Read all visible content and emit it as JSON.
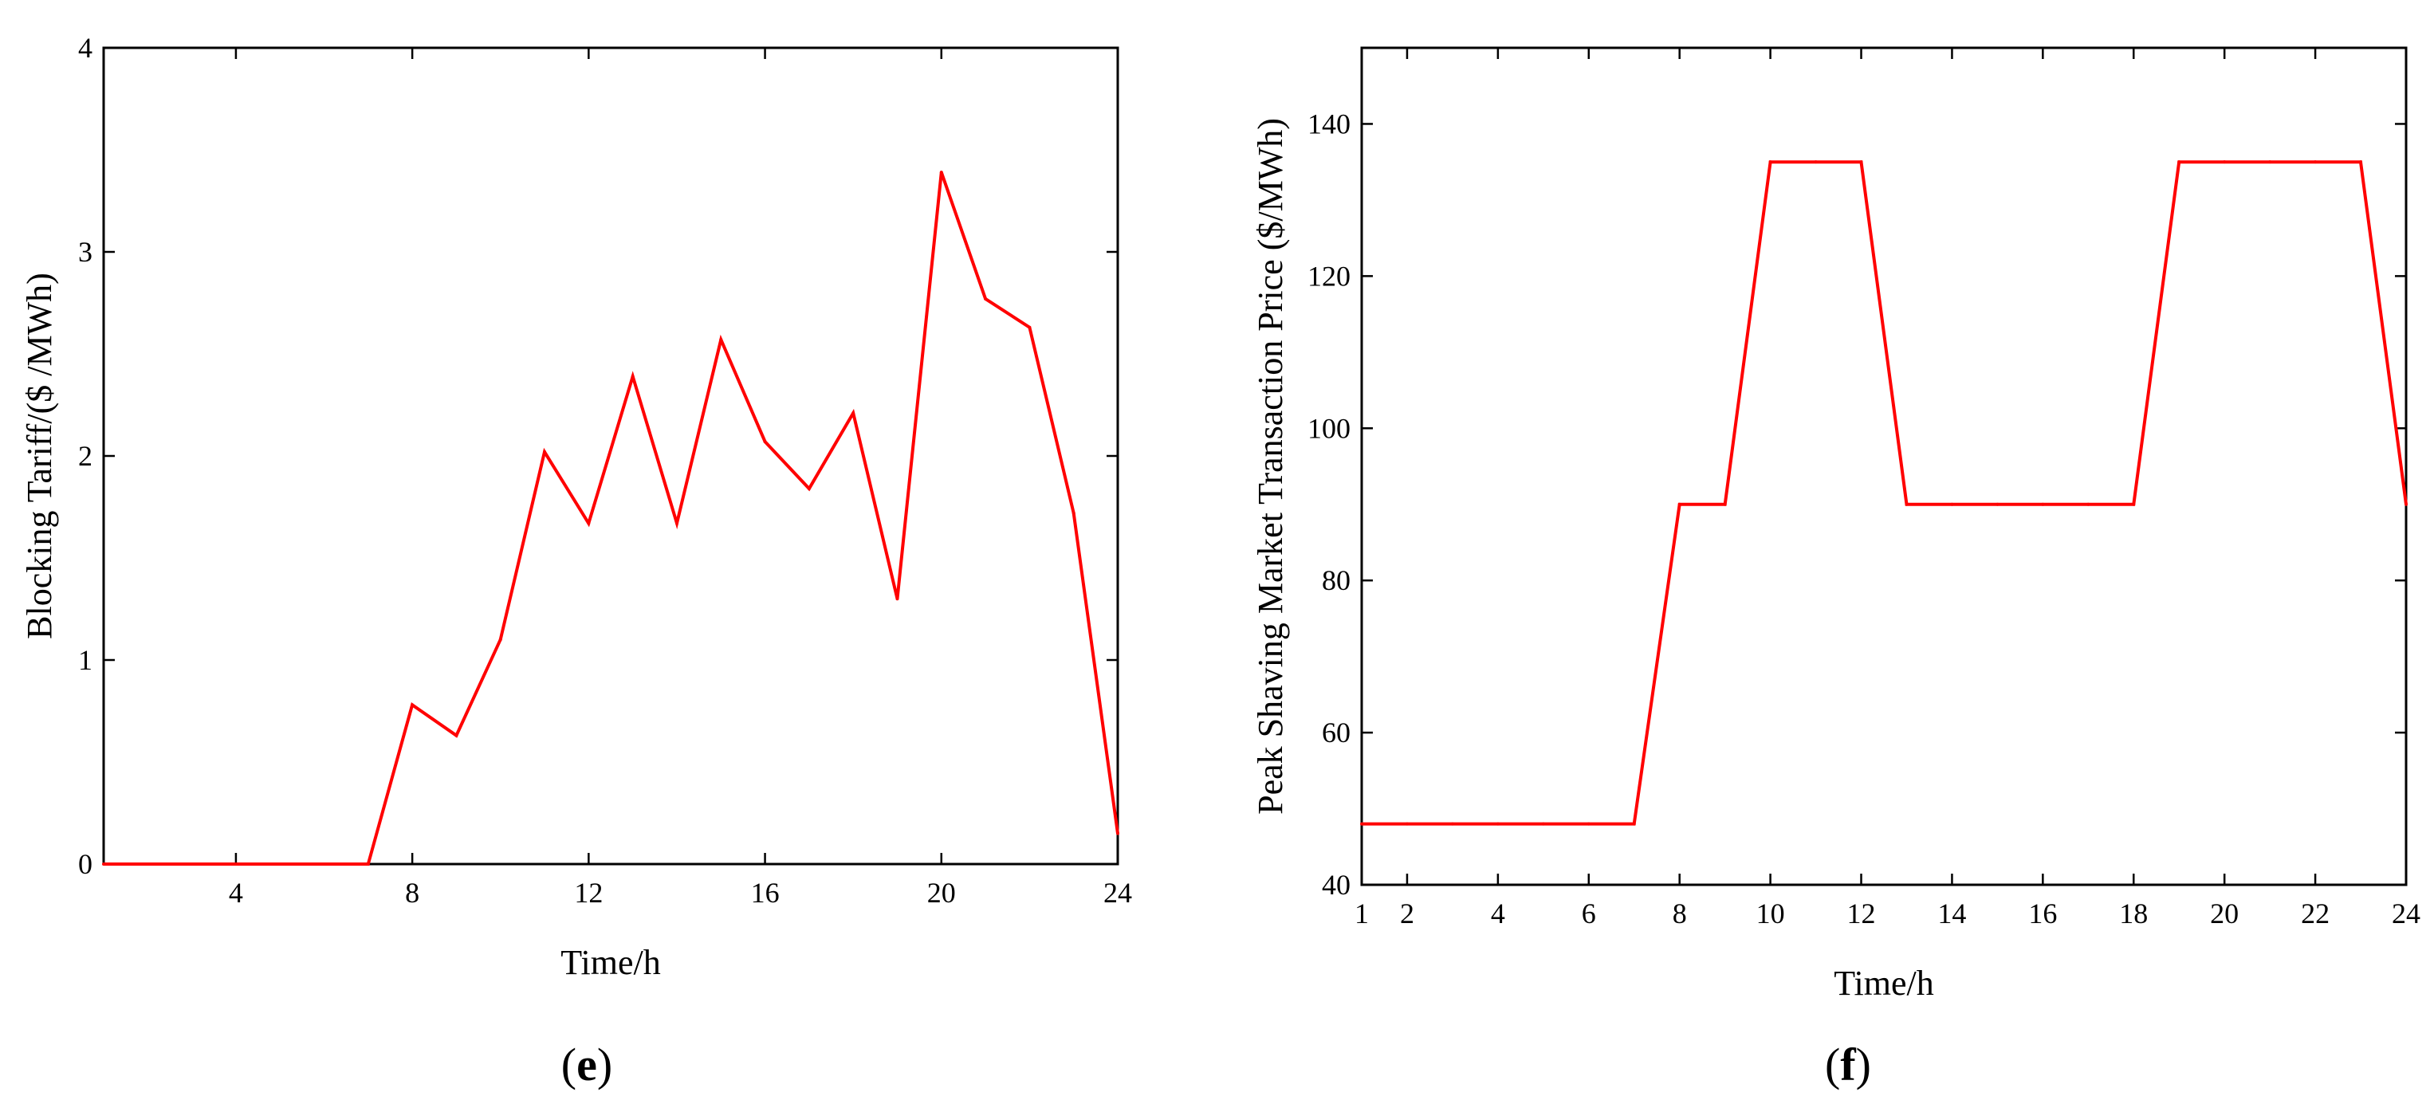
{
  "colors": {
    "line": "#ff0000",
    "axis": "#000000",
    "background": "#ffffff"
  },
  "panels": [
    {
      "label_open": "(",
      "label_letter": "e",
      "label_close": ")"
    },
    {
      "label_open": "(",
      "label_letter": "f",
      "label_close": ")"
    }
  ],
  "chart_data": [
    {
      "type": "line",
      "title": "",
      "xlabel": "Time/h",
      "ylabel": "Blocking Tariff/($ /MWh)",
      "xlim": [
        1,
        24
      ],
      "ylim": [
        0,
        4
      ],
      "xticks": [
        4,
        8,
        12,
        16,
        20,
        24
      ],
      "yticks": [
        0,
        1,
        2,
        3,
        4
      ],
      "grid": false,
      "series": [
        {
          "x": [
            1,
            2,
            3,
            4,
            5,
            6,
            7,
            8,
            9,
            10,
            11,
            12,
            13,
            14,
            15,
            16,
            17,
            18,
            19,
            20,
            21,
            22,
            23,
            24
          ],
          "y": [
            0,
            0,
            0,
            0,
            0,
            0,
            0,
            0.78,
            0.63,
            1.1,
            2.02,
            1.67,
            2.39,
            1.67,
            2.57,
            2.07,
            1.84,
            2.21,
            1.3,
            3.39,
            2.77,
            2.63,
            1.72,
            0.15
          ]
        }
      ]
    },
    {
      "type": "line",
      "title": "",
      "xlabel": "Time/h",
      "ylabel": "Peak Shaving Market Transaction Price ($/MWh)",
      "xlim": [
        1,
        24
      ],
      "ylim": [
        40,
        150
      ],
      "xticks": [
        1,
        2,
        4,
        6,
        8,
        10,
        12,
        14,
        16,
        18,
        20,
        22,
        24
      ],
      "yticks": [
        40,
        60,
        80,
        100,
        120,
        140
      ],
      "grid": false,
      "series": [
        {
          "x": [
            1,
            2,
            3,
            4,
            5,
            6,
            7,
            8,
            9,
            10,
            11,
            12,
            13,
            14,
            15,
            16,
            17,
            18,
            19,
            20,
            21,
            22,
            23,
            24
          ],
          "y": [
            48,
            48,
            48,
            48,
            48,
            48,
            48,
            90,
            90,
            135,
            135,
            135,
            90,
            90,
            90,
            90,
            90,
            90,
            135,
            135,
            135,
            135,
            135,
            90
          ]
        }
      ]
    }
  ]
}
